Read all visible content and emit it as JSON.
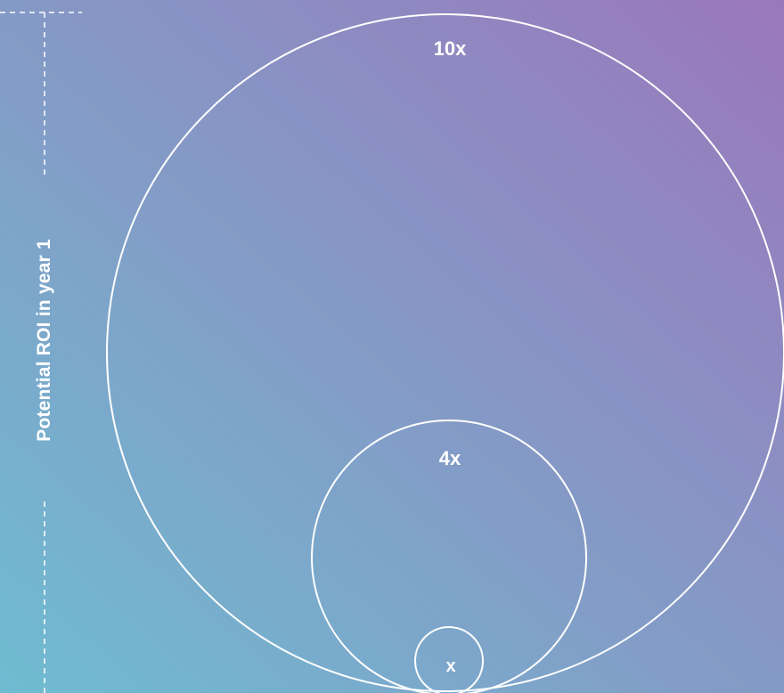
{
  "background": {
    "gradient_start": "#6fbcd1",
    "gradient_end": "#9a77bb"
  },
  "axis": {
    "label": "Potential ROI in year 1"
  },
  "circles": [
    {
      "label": "10x",
      "relative_value": 10
    },
    {
      "label": "4x",
      "relative_value": 4
    },
    {
      "label": "x",
      "relative_value": 1
    }
  ]
}
